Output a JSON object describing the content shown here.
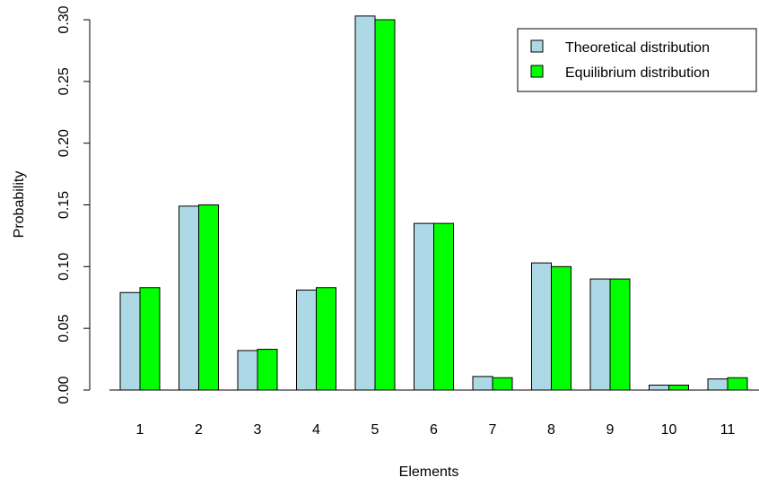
{
  "chart_data": {
    "type": "bar",
    "xlabel": "Elements",
    "ylabel": "Probability",
    "ylim": [
      0,
      0.3
    ],
    "yticks": [
      "0.00",
      "0.05",
      "0.10",
      "0.15",
      "0.20",
      "0.25",
      "0.30"
    ],
    "categories": [
      "1",
      "2",
      "3",
      "4",
      "5",
      "6",
      "7",
      "8",
      "9",
      "10",
      "11"
    ],
    "series": [
      {
        "name": "Theoretical distribution",
        "color": "#add8e6",
        "values": [
          0.079,
          0.149,
          0.032,
          0.081,
          0.303,
          0.135,
          0.011,
          0.103,
          0.09,
          0.004,
          0.009
        ]
      },
      {
        "name": "Equilibrium distribution",
        "color": "#00ff00",
        "values": [
          0.083,
          0.15,
          0.033,
          0.083,
          0.3,
          0.135,
          0.01,
          0.1,
          0.09,
          0.004,
          0.01
        ]
      }
    ],
    "grid": false,
    "legend_position": "top-right"
  }
}
